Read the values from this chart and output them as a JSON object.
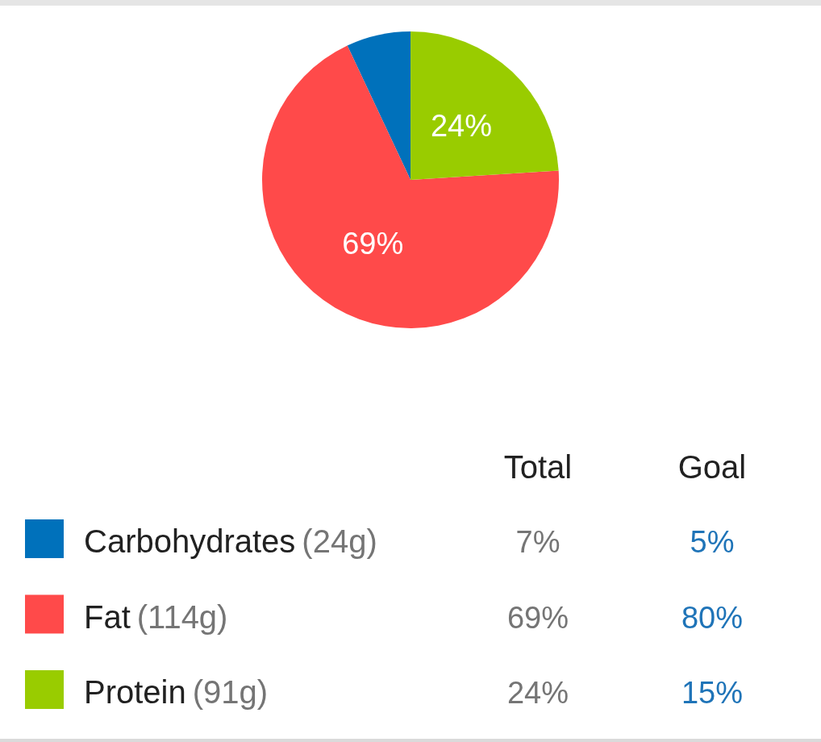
{
  "chart_data": [
    {
      "type": "pie",
      "categories": [
        "Carbohydrates",
        "Fat",
        "Protein"
      ],
      "values": [
        7,
        69,
        24
      ],
      "colors": [
        "#0071bb",
        "#ff4a4a",
        "#99cc00"
      ],
      "value_labels": [
        null,
        "69%",
        "24%"
      ],
      "legend": "bottom"
    },
    {
      "type": "other",
      "annotations": [
        "Total",
        "Goal",
        "(24g)",
        "7%",
        "5%",
        "(114g)",
        "69%",
        "80%",
        "(91g)",
        "24%",
        "15%"
      ]
    }
  ]
}
